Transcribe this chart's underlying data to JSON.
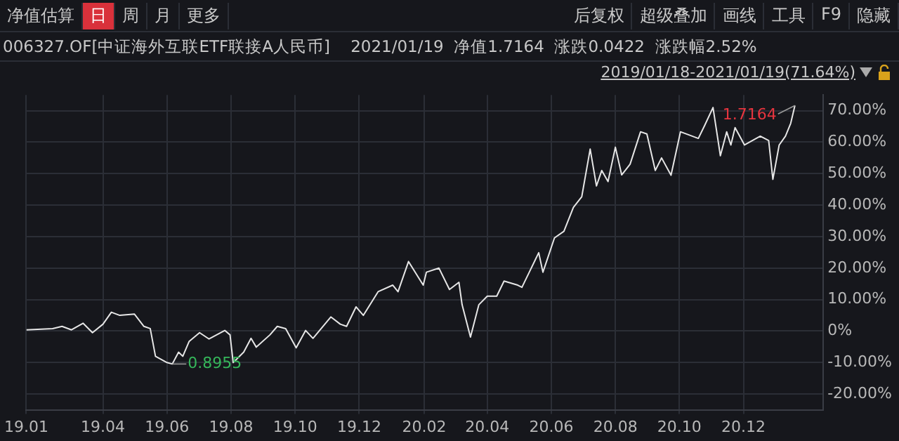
{
  "chart_data": {
    "type": "line",
    "title": "006327.OF[中证海外互联ETF联接A人民币]    2021/01/19  净值1.7164  涨跌0.0422  涨跌幅2.52%",
    "subtitle": "2019/01/18-2021/01/19(71.64%)",
    "x": [
      "2019-01-18",
      "2019-02-12",
      "2019-02-21",
      "2019-03-02",
      "2019-03-13",
      "2019-03-22",
      "2019-04-01",
      "2019-04-09",
      "2019-04-17",
      "2019-05-01",
      "2019-05-10",
      "2019-05-16",
      "2019-05-21",
      "2019-06-01",
      "2019-06-06",
      "2019-06-12",
      "2019-06-16",
      "2019-06-22",
      "2019-07-02",
      "2019-07-11",
      "2019-07-26",
      "2019-07-31",
      "2019-08-03",
      "2019-08-13",
      "2019-08-20",
      "2019-08-25",
      "2019-09-07",
      "2019-09-14",
      "2019-09-22",
      "2019-10-02",
      "2019-10-11",
      "2019-10-18",
      "2019-11-04",
      "2019-11-13",
      "2019-11-19",
      "2019-11-28",
      "2019-12-05",
      "2019-12-19",
      "2020-01-02",
      "2020-01-07",
      "2020-01-17",
      "2020-01-31",
      "2020-02-03",
      "2020-02-15",
      "2020-02-25",
      "2020-03-05",
      "2020-03-08",
      "2020-03-16",
      "2020-03-24",
      "2020-04-01",
      "2020-04-10",
      "2020-04-17",
      "2020-04-30",
      "2020-05-04",
      "2020-05-11",
      "2020-05-20",
      "2020-05-24",
      "2020-06-04",
      "2020-06-13",
      "2020-06-22",
      "2020-06-30",
      "2020-07-08",
      "2020-07-14",
      "2020-07-19",
      "2020-07-25",
      "2020-08-01",
      "2020-08-07",
      "2020-08-15",
      "2020-08-25",
      "2020-08-31",
      "2020-09-08",
      "2020-09-14",
      "2020-09-23",
      "2020-10-02",
      "2020-10-19",
      "2020-10-25",
      "2020-11-02",
      "2020-11-09",
      "2020-11-15",
      "2020-11-19",
      "2020-11-23",
      "2020-12-02",
      "2020-12-17",
      "2020-12-25",
      "2020-12-29",
      "2021-01-04",
      "2021-01-10",
      "2021-01-15",
      "2021-01-19"
    ],
    "series": [
      {
        "color": "#e6e6e6",
        "values": [
          0.4,
          0.8,
          1.5,
          0.4,
          2.5,
          -0.5,
          2.2,
          6.0,
          5.0,
          5.4,
          1.5,
          0.8,
          -8.0,
          -10.0,
          -10.45,
          -6.7,
          -8.0,
          -3.3,
          -0.5,
          -2.5,
          0.2,
          -1.2,
          -10.0,
          -6.7,
          -2.3,
          -5.1,
          -1.2,
          1.5,
          0.8,
          -5.3,
          0.2,
          -2.3,
          4.5,
          2.2,
          1.5,
          7.7,
          5.0,
          12.5,
          14.6,
          12.5,
          22.1,
          14.6,
          18.7,
          20.0,
          13.2,
          15.5,
          8.4,
          -1.9,
          8.4,
          11.1,
          11.1,
          15.9,
          14.6,
          13.9,
          18.7,
          24.9,
          18.7,
          29.6,
          31.7,
          39.3,
          42.7,
          57.8,
          46.1,
          51.0,
          47.5,
          58.4,
          49.6,
          53.0,
          63.3,
          62.6,
          51.0,
          55.0,
          49.5,
          63.3,
          61.2,
          65.3,
          71.0,
          55.7,
          63.3,
          59.1,
          64.6,
          59.1,
          61.9,
          60.5,
          48.2,
          59.1,
          61.9,
          66.0,
          71.64
        ]
      }
    ],
    "xlim": [
      "2019-01-18",
      "2021-02-15"
    ],
    "xticks": [
      {
        "value": "2019-01-18",
        "label": "19.01"
      },
      {
        "value": "2019-04-01",
        "label": "19.04"
      },
      {
        "value": "2019-06-01",
        "label": "19.06"
      },
      {
        "value": "2019-08-01",
        "label": "19.08"
      },
      {
        "value": "2019-10-01",
        "label": "19.10"
      },
      {
        "value": "2019-12-01",
        "label": "19.12"
      },
      {
        "value": "2020-02-01",
        "label": "20.02"
      },
      {
        "value": "2020-04-01",
        "label": "20.04"
      },
      {
        "value": "2020-06-01",
        "label": "20.06"
      },
      {
        "value": "2020-08-01",
        "label": "20.08"
      },
      {
        "value": "2020-10-01",
        "label": "20.10"
      },
      {
        "value": "2020-12-01",
        "label": "20.12"
      }
    ],
    "ylim": [
      -25,
      75
    ],
    "yticks": [
      {
        "value": -20,
        "label": "-20.00%"
      },
      {
        "value": -10,
        "label": "-10.00%"
      },
      {
        "value": 0,
        "label": "0%"
      },
      {
        "value": 10,
        "label": "10.00%"
      },
      {
        "value": 20,
        "label": "20.00%"
      },
      {
        "value": 30,
        "label": "30.00%"
      },
      {
        "value": 40,
        "label": "40.00%"
      },
      {
        "value": 50,
        "label": "50.00%"
      },
      {
        "value": 60,
        "label": "60.00%"
      },
      {
        "value": 70,
        "label": "70.00%"
      }
    ],
    "grid": true,
    "legend": false,
    "marker": "none",
    "line_style": "solid",
    "annotations": [
      "净值估算",
      "日",
      "周",
      "月",
      "更多",
      "后复权",
      "超级叠加",
      "画线",
      "工具",
      "F9",
      "隐藏",
      {
        "text": "0.8955",
        "x": "2019-06-06",
        "y": -10.45
      },
      {
        "text": "1.7164",
        "x": "2021-01-19",
        "y": 71.64
      }
    ]
  }
}
